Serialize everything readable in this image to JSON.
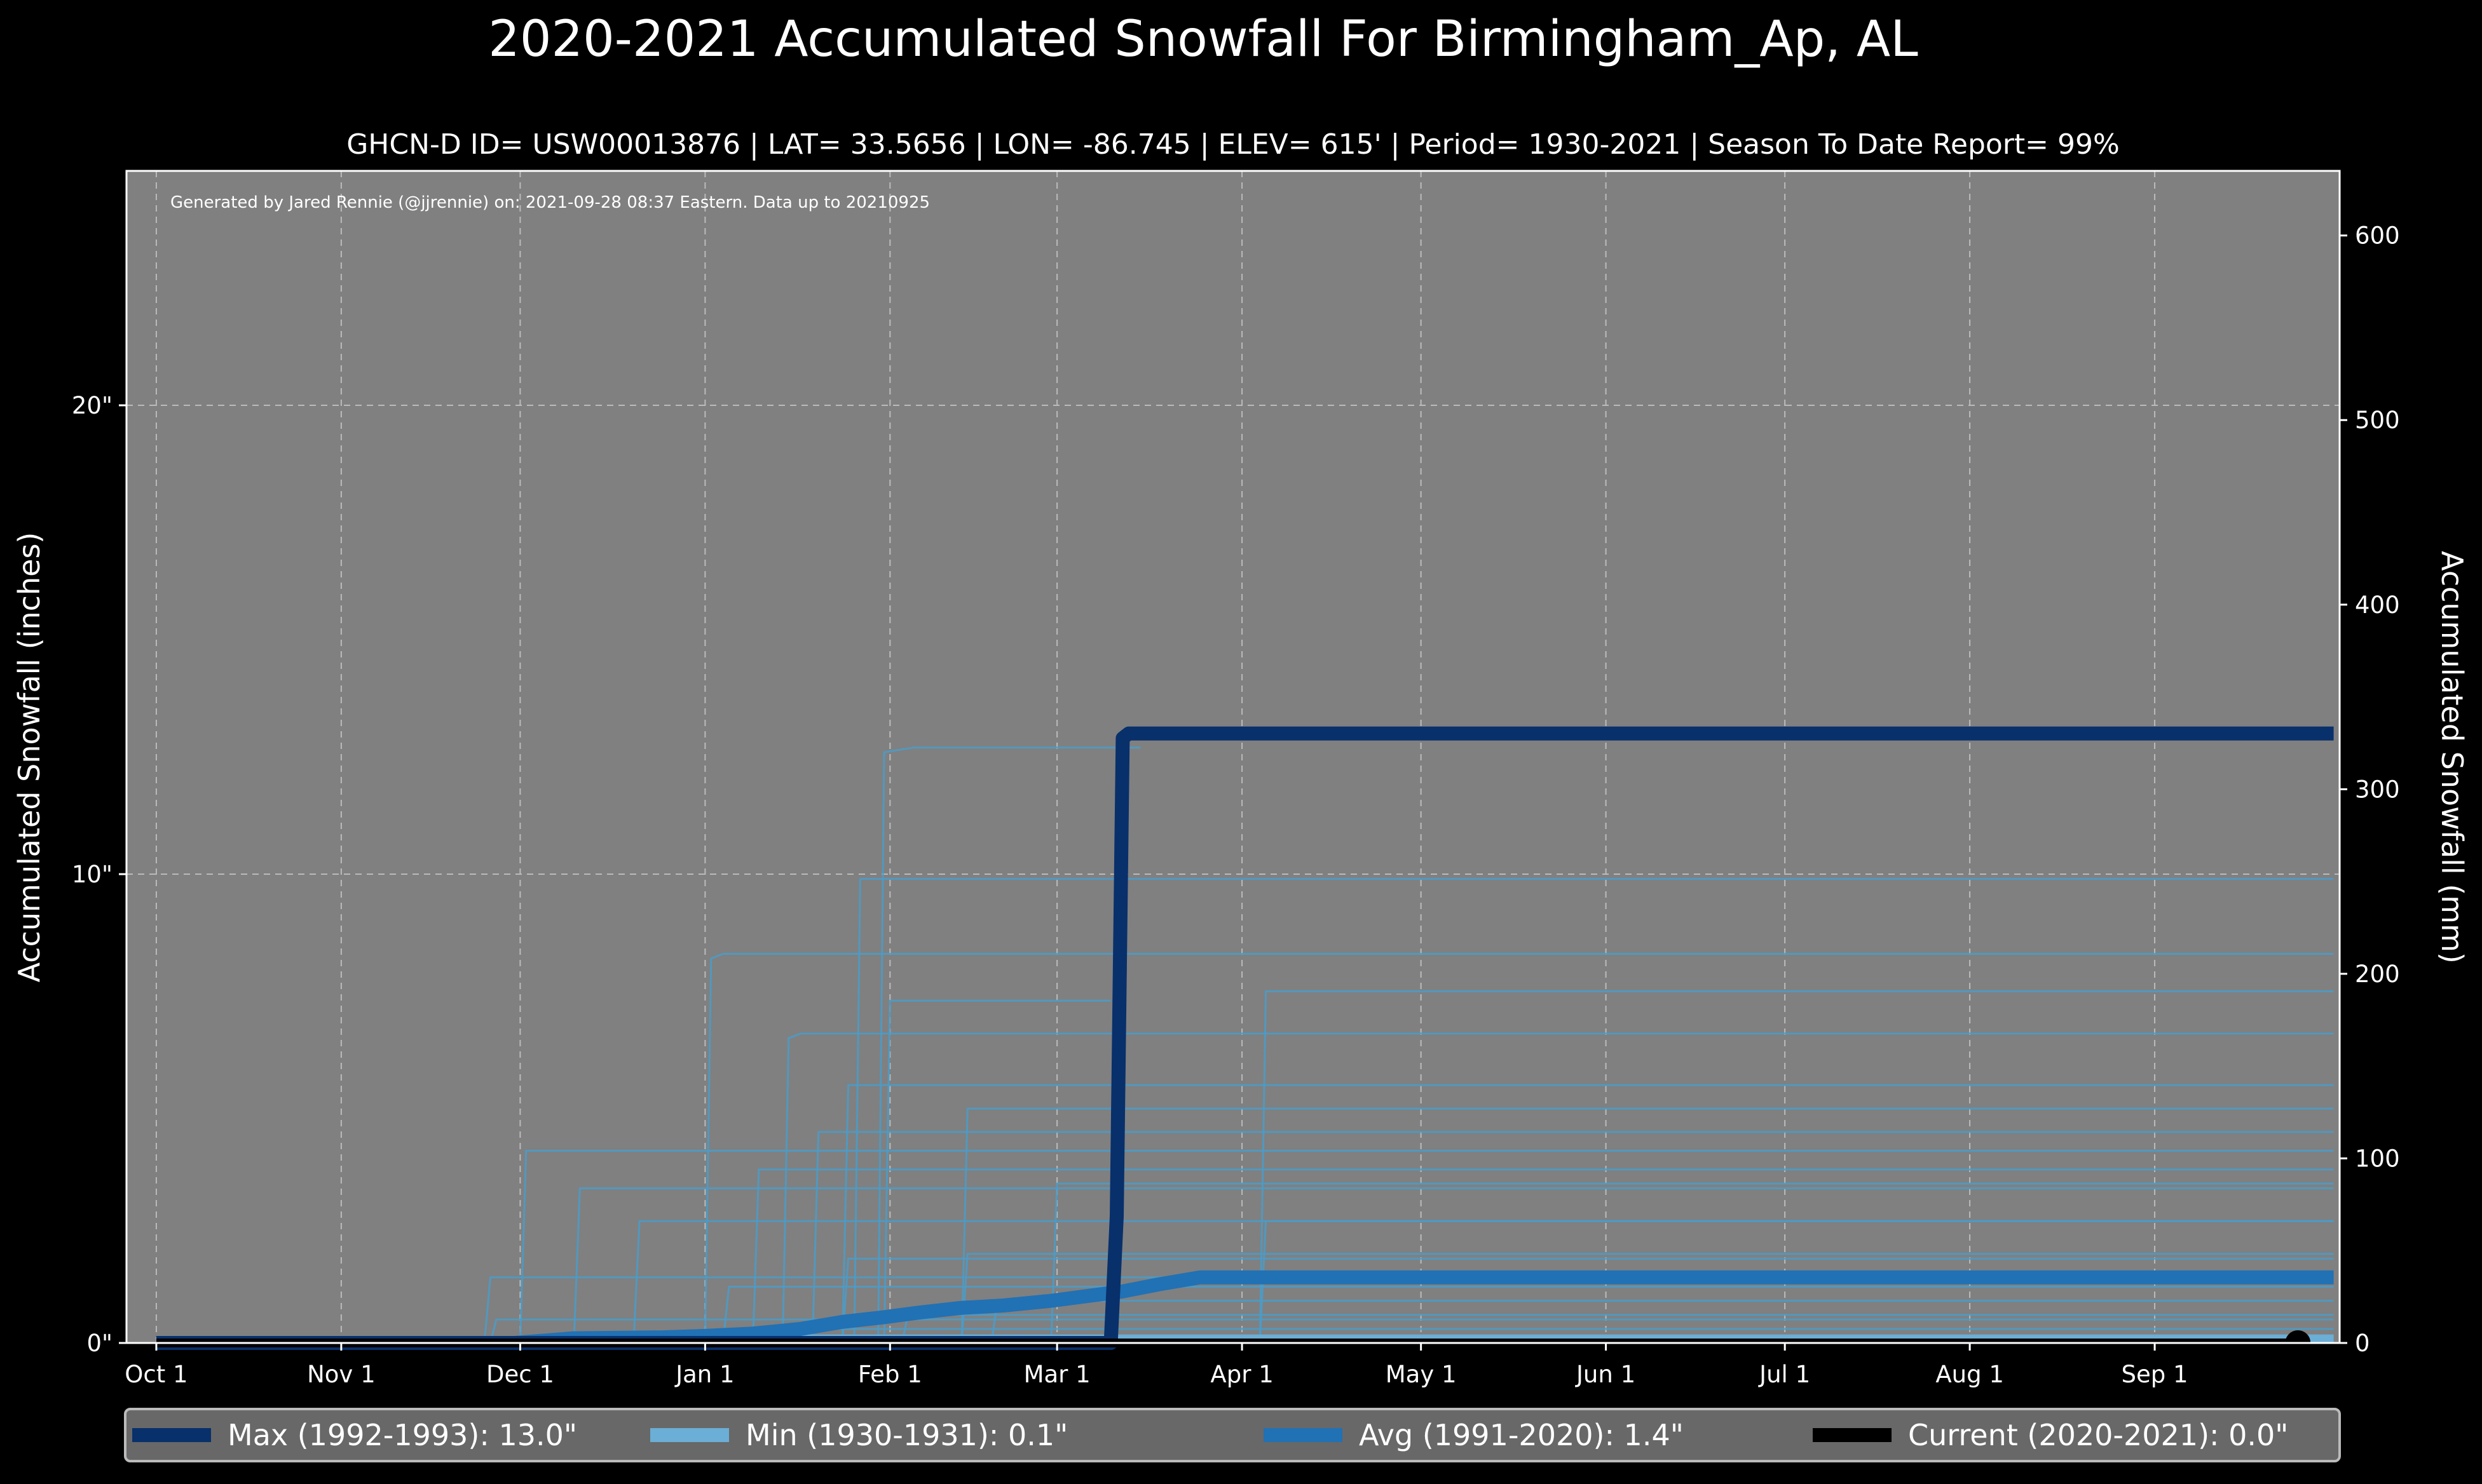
{
  "chart_data": {
    "type": "line",
    "title": "2020-2021 Accumulated Snowfall For Birmingham_Ap, AL",
    "subtitle": "GHCN-D ID= USW00013876 | LAT= 33.5656 | LON= -86.745 | ELEV= 615' | Period= 1930-2021 | Season To Date Report= 99%",
    "annotation": "Generated by Jared Rennie (@jjrennie) on: 2021-09-28 08:37 Eastern. Data up to 20210925",
    "ylabel": "Accumulated Snowfall (inches)",
    "ylabel_right": "Accumulated Snowfall (mm)",
    "xlim": [
      -5,
      366
    ],
    "ylim": [
      0,
      25
    ],
    "ylim_right_mm": [
      0,
      635
    ],
    "grid": true,
    "legend_placement": "bottom",
    "x_ticks": [
      {
        "day": 0,
        "label": "Oct 1"
      },
      {
        "day": 31,
        "label": "Nov 1"
      },
      {
        "day": 61,
        "label": "Dec 1"
      },
      {
        "day": 92,
        "label": "Jan 1"
      },
      {
        "day": 123,
        "label": "Feb 1"
      },
      {
        "day": 151,
        "label": "Mar 1"
      },
      {
        "day": 182,
        "label": "Apr 1"
      },
      {
        "day": 212,
        "label": "May 1"
      },
      {
        "day": 243,
        "label": "Jun 1"
      },
      {
        "day": 273,
        "label": "Jul 1"
      },
      {
        "day": 304,
        "label": "Aug 1"
      },
      {
        "day": 335,
        "label": "Sep 1"
      }
    ],
    "y_ticks": [
      {
        "value": 0,
        "label": "0\""
      },
      {
        "value": 10,
        "label": "10\""
      },
      {
        "value": 20,
        "label": "20\""
      }
    ],
    "y_ticks_right": [
      0,
      100,
      200,
      300,
      400,
      500,
      600
    ],
    "other_seasons": [
      [
        [
          0,
          0
        ],
        [
          121,
          0
        ],
        [
          122,
          12.6
        ],
        [
          127,
          12.7
        ],
        [
          165,
          12.7
        ]
      ],
      [
        [
          0,
          0
        ],
        [
          117,
          0
        ],
        [
          118,
          9.9
        ],
        [
          365,
          9.9
        ]
      ],
      [
        [
          0,
          0
        ],
        [
          92,
          0
        ],
        [
          93,
          8.2
        ],
        [
          95,
          8.3
        ],
        [
          365,
          8.3
        ]
      ],
      [
        [
          0,
          0
        ],
        [
          122,
          0
        ],
        [
          123,
          7.3
        ],
        [
          160,
          7.3
        ]
      ],
      [
        [
          0,
          0
        ],
        [
          185,
          0
        ],
        [
          186,
          7.5
        ],
        [
          365,
          7.5
        ]
      ],
      [
        [
          0,
          0
        ],
        [
          105,
          0
        ],
        [
          106,
          6.5
        ],
        [
          108,
          6.6
        ],
        [
          365,
          6.6
        ]
      ],
      [
        [
          0,
          0
        ],
        [
          115,
          0
        ],
        [
          116,
          5.5
        ],
        [
          365,
          5.5
        ]
      ],
      [
        [
          0,
          0
        ],
        [
          135,
          0
        ],
        [
          136,
          5.0
        ],
        [
          365,
          5.0
        ]
      ],
      [
        [
          0,
          0
        ],
        [
          61,
          0
        ],
        [
          62,
          4.1
        ],
        [
          365,
          4.1
        ]
      ],
      [
        [
          0,
          0
        ],
        [
          110,
          0
        ],
        [
          111,
          4.5
        ],
        [
          365,
          4.5
        ]
      ],
      [
        [
          0,
          0
        ],
        [
          100,
          0
        ],
        [
          101,
          3.7
        ],
        [
          365,
          3.7
        ]
      ],
      [
        [
          0,
          0
        ],
        [
          70,
          0
        ],
        [
          71,
          3.3
        ],
        [
          365,
          3.3
        ]
      ],
      [
        [
          0,
          0
        ],
        [
          150,
          0
        ],
        [
          151,
          3.4
        ],
        [
          365,
          3.4
        ]
      ],
      [
        [
          0,
          0
        ],
        [
          185,
          0
        ],
        [
          186,
          2.6
        ],
        [
          365,
          2.6
        ]
      ],
      [
        [
          0,
          0
        ],
        [
          80,
          0
        ],
        [
          81,
          2.6
        ],
        [
          365,
          2.6
        ]
      ],
      [
        [
          0,
          0
        ],
        [
          115,
          0
        ],
        [
          116,
          1.8
        ],
        [
          365,
          1.8
        ]
      ],
      [
        [
          0,
          0
        ],
        [
          55,
          0
        ],
        [
          56,
          1.4
        ],
        [
          365,
          1.4
        ]
      ],
      [
        [
          0,
          0
        ],
        [
          135,
          0
        ],
        [
          136,
          1.9
        ],
        [
          365,
          1.9
        ]
      ],
      [
        [
          0,
          0
        ],
        [
          95,
          0
        ],
        [
          96,
          1.2
        ],
        [
          365,
          1.2
        ]
      ],
      [
        [
          0,
          0
        ],
        [
          140,
          0
        ],
        [
          141,
          0.9
        ],
        [
          365,
          0.9
        ]
      ],
      [
        [
          0,
          0
        ],
        [
          56,
          0
        ],
        [
          57,
          0.5
        ],
        [
          365,
          0.5
        ]
      ],
      [
        [
          0,
          0
        ],
        [
          125,
          0
        ],
        [
          126,
          0.6
        ],
        [
          365,
          0.6
        ]
      ],
      [
        [
          0,
          0
        ],
        [
          100,
          0
        ],
        [
          101,
          0.3
        ],
        [
          365,
          0.3
        ]
      ]
    ],
    "series": [
      {
        "name": "Min",
        "legend": "Min (1930-1931):    0.1\"",
        "color": "#6baed6",
        "width": 12,
        "points": [
          [
            0,
            0
          ],
          [
            100,
            0
          ],
          [
            101,
            0.1
          ],
          [
            365,
            0.1
          ]
        ]
      },
      {
        "name": "Avg",
        "legend": "Avg (1991-2020):    1.4\"",
        "color": "#2171b5",
        "width": 22,
        "points": [
          [
            0,
            0
          ],
          [
            60,
            0
          ],
          [
            70,
            0.1
          ],
          [
            85,
            0.12
          ],
          [
            92,
            0.15
          ],
          [
            100,
            0.2
          ],
          [
            108,
            0.3
          ],
          [
            115,
            0.45
          ],
          [
            122,
            0.55
          ],
          [
            128,
            0.65
          ],
          [
            135,
            0.75
          ],
          [
            142,
            0.8
          ],
          [
            150,
            0.9
          ],
          [
            156,
            1.0
          ],
          [
            162,
            1.1
          ],
          [
            168,
            1.25
          ],
          [
            175,
            1.4
          ],
          [
            365,
            1.4
          ]
        ]
      },
      {
        "name": "Max",
        "legend": "Max (1992-1993):   13.0\"",
        "color": "#08306b",
        "width": 22,
        "points": [
          [
            0,
            0
          ],
          [
            160,
            0
          ],
          [
            161,
            2.7
          ],
          [
            162,
            12.9
          ],
          [
            163,
            13.0
          ],
          [
            365,
            13.0
          ]
        ]
      },
      {
        "name": "Current",
        "legend": "Current (2020-2021): 0.0\"",
        "color": "#000000",
        "width": 14,
        "points": [
          [
            0,
            0
          ],
          [
            359,
            0
          ]
        ]
      }
    ]
  }
}
